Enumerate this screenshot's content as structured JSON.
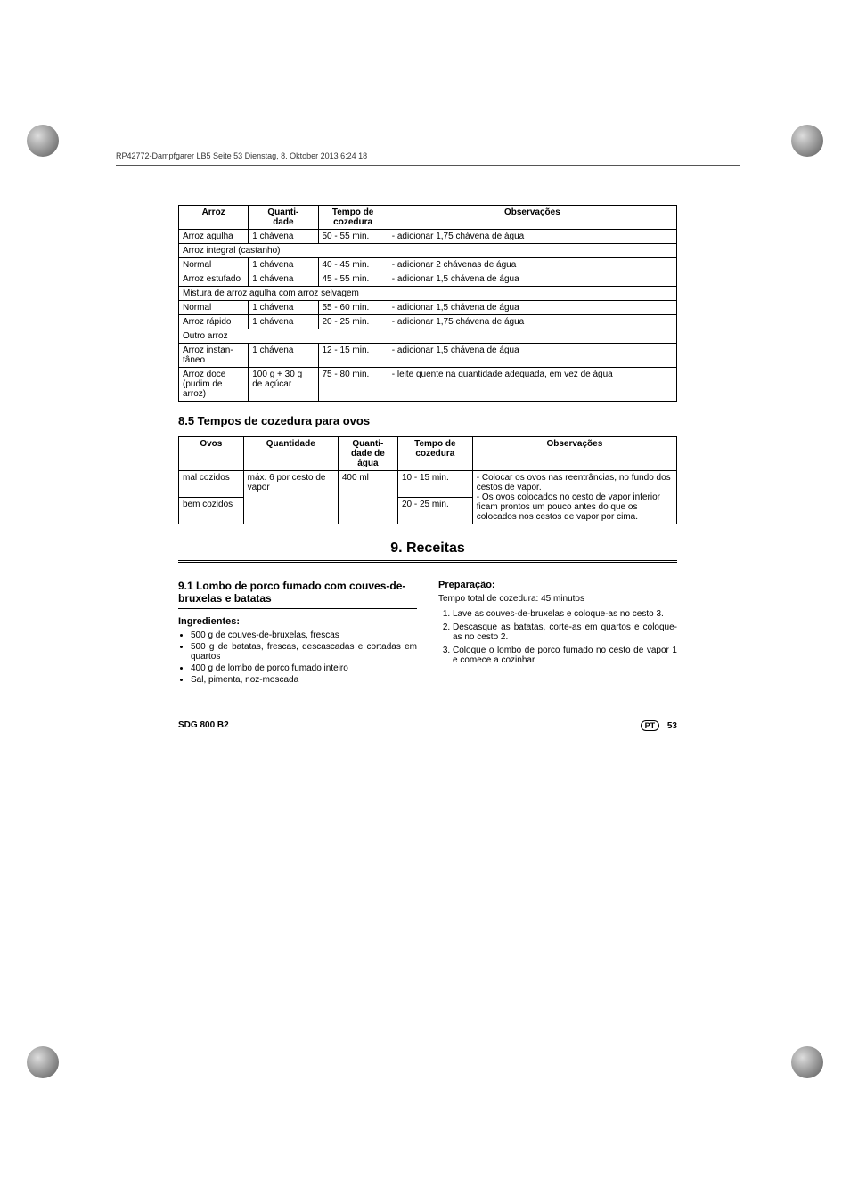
{
  "header_text": "RP42772-Dampfgarer LB5  Seite 53  Dienstag, 8. Oktober 2013  6:24 18",
  "table1": {
    "headers": [
      "Arroz",
      "Quanti-\ndade",
      "Tempo de\ncozedura",
      "Observações"
    ],
    "rows": [
      {
        "c": [
          "Arroz agulha",
          "1 chávena",
          "50 - 55 min.",
          "- adicionar 1,75 chávena de água"
        ]
      },
      {
        "span": "Arroz integral (castanho)"
      },
      {
        "c": [
          "Normal",
          "1 chávena",
          "40 - 45 min.",
          "- adicionar 2 chávenas de água"
        ]
      },
      {
        "c": [
          "Arroz estufado",
          "1 chávena",
          "45 - 55 min.",
          "- adicionar 1,5 chávena de água"
        ]
      },
      {
        "span": "Mistura de arroz agulha com arroz selvagem"
      },
      {
        "c": [
          "Normal",
          "1 chávena",
          "55 - 60 min.",
          "- adicionar 1,5 chávena de água"
        ]
      },
      {
        "c": [
          "Arroz rápido",
          "1 chávena",
          "20 - 25 min.",
          "- adicionar 1,75 chávena de água"
        ]
      },
      {
        "span": "Outro arroz"
      },
      {
        "c": [
          "Arroz instan-tâneo",
          "1 chávena",
          "12 - 15 min.",
          "- adicionar 1,5 chávena de água"
        ]
      },
      {
        "c": [
          "Arroz doce (pudim de arroz)",
          "100 g + 30 g de açúcar",
          "75 - 80 min.",
          "- leite quente na quantidade adequada, em vez de água"
        ]
      }
    ],
    "col_widths": [
      "14%",
      "14%",
      "14%",
      "58%"
    ]
  },
  "section_8_5": "8.5 Tempos de cozedura para ovos",
  "table2": {
    "headers": [
      "Ovos",
      "Quantidade",
      "Quanti-dade de água",
      "Tempo de cozedura",
      "Observações"
    ],
    "col_widths": [
      "13%",
      "19%",
      "12%",
      "15%",
      "41%"
    ],
    "row1": [
      "mal cozidos",
      "máx. 6 por cesto de vapor",
      "400 ml",
      "10 - 15 min.",
      "- Colocar os ovos nas reentrâncias, no fundo dos cestos de vapor.\n- Os ovos colocados no cesto de vapor inferior ficam prontos um pouco antes do que os colocados nos cestos de vapor por cima."
    ],
    "row2_c0": "bem cozidos",
    "row2_c3": "20 - 25 min."
  },
  "chapter9": "9. Receitas",
  "section_9_1": "9.1 Lombo de porco fumado com couves-de-bruxelas e batatas",
  "ingredientes_label": "Ingredientes:",
  "ingredientes": [
    "500 g de couves-de-bruxelas, frescas",
    "500 g de batatas, frescas, descascadas e cortadas em quartos",
    "400 g de lombo de porco fumado inteiro",
    "Sal, pimenta, noz-moscada"
  ],
  "preparacao_label": "Preparação:",
  "prep_time": "Tempo total de cozedura: 45 minutos",
  "prep_steps": [
    "Lave as couves-de-bruxelas e coloque-as no cesto 3.",
    "Descasque as batatas, corte-as em quartos e coloque-as no cesto 2.",
    "Coloque o lombo de porco fumado no cesto de vapor 1 e comece a cozinhar"
  ],
  "footer_model": "SDG 800 B2",
  "footer_lang": "PT",
  "footer_page": "53"
}
